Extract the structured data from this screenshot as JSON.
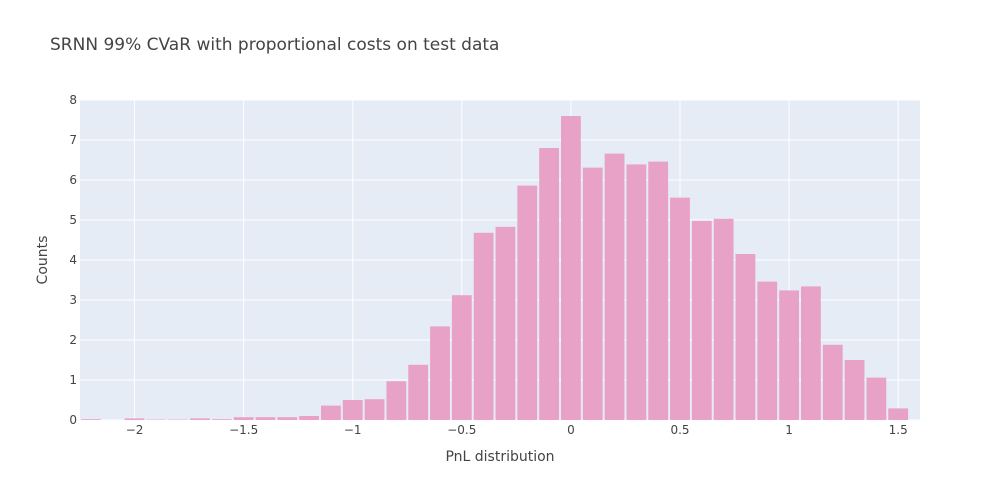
{
  "chart_data": {
    "type": "bar",
    "title": "SRNN 99% CVaR with proportional costs on test data",
    "xlabel": "PnL distribution",
    "ylabel": "Counts",
    "xlim": [
      -2.25,
      1.6
    ],
    "ylim": [
      0,
      8
    ],
    "bin_width": 0.1,
    "x": [
      -2.2,
      -2.1,
      -2.0,
      -1.9,
      -1.8,
      -1.7,
      -1.6,
      -1.5,
      -1.4,
      -1.3,
      -1.2,
      -1.1,
      -1.0,
      -0.9,
      -0.8,
      -0.7,
      -0.6,
      -0.5,
      -0.4,
      -0.3,
      -0.2,
      -0.1,
      0.0,
      0.1,
      0.2,
      0.3,
      0.4,
      0.5,
      0.6,
      0.7,
      0.8,
      0.9,
      1.0,
      1.1,
      1.2,
      1.3,
      1.4,
      1.5
    ],
    "values": [
      0.02,
      0.0,
      0.04,
      0.01,
      0.01,
      0.04,
      0.02,
      0.07,
      0.07,
      0.07,
      0.1,
      0.36,
      0.5,
      0.52,
      0.97,
      1.38,
      2.34,
      3.12,
      4.68,
      4.83,
      5.86,
      6.8,
      7.6,
      6.31,
      6.66,
      6.39,
      6.46,
      5.56,
      4.98,
      5.03,
      4.15,
      3.46,
      3.24,
      3.34,
      1.88,
      1.5,
      1.06,
      0.29
    ],
    "x_ticks": [
      {
        "value": -2,
        "label": "−2"
      },
      {
        "value": -1.5,
        "label": "−1.5"
      },
      {
        "value": -1,
        "label": "−1"
      },
      {
        "value": -0.5,
        "label": "−0.5"
      },
      {
        "value": 0,
        "label": "0"
      },
      {
        "value": 0.5,
        "label": "0.5"
      },
      {
        "value": 1,
        "label": "1"
      },
      {
        "value": 1.5,
        "label": "1.5"
      }
    ],
    "y_ticks": [
      {
        "value": 0,
        "label": "0"
      },
      {
        "value": 1,
        "label": "1"
      },
      {
        "value": 2,
        "label": "2"
      },
      {
        "value": 3,
        "label": "3"
      },
      {
        "value": 4,
        "label": "4"
      },
      {
        "value": 5,
        "label": "5"
      },
      {
        "value": 6,
        "label": "6"
      },
      {
        "value": 7,
        "label": "7"
      },
      {
        "value": 8,
        "label": "8"
      }
    ],
    "grid": true,
    "legend": false,
    "colors": {
      "bar": "#e9a2c7",
      "plot_bg": "#e5ecf6",
      "grid": "#ffffff",
      "text": "#444444"
    }
  }
}
